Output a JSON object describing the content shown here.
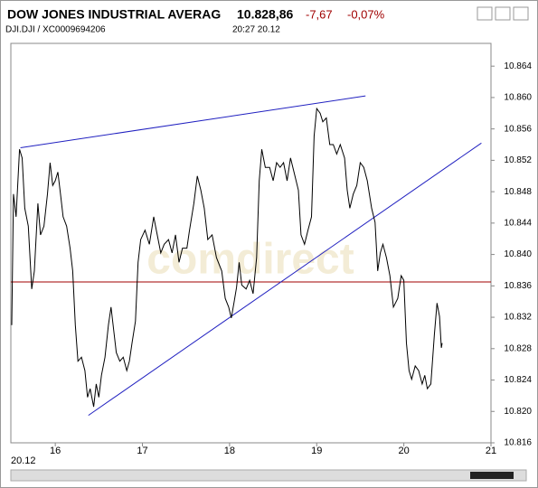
{
  "chart_data": {
    "type": "line",
    "title": "DOW JONES INDUSTRIAL AVERAG",
    "last_price": "10.828,86",
    "change": "-7,67",
    "change_percent": "-0,07%",
    "subtitle": "DJI.DJI  /  XC0009694206",
    "time": "20:27   20.12",
    "date_label": "20.12",
    "watermark": "comdirect",
    "xlim": [
      15.49,
      21.0
    ],
    "xticks": [
      16,
      17,
      18,
      19,
      20,
      21
    ],
    "ylim": [
      10816,
      10866.9
    ],
    "yticks": [
      {
        "value": 10816,
        "label": "10.816"
      },
      {
        "value": 10820,
        "label": "10.820"
      },
      {
        "value": 10824,
        "label": "10.824"
      },
      {
        "value": 10828,
        "label": "10.828"
      },
      {
        "value": 10832,
        "label": "10.832"
      },
      {
        "value": 10836,
        "label": "10.836"
      },
      {
        "value": 10840,
        "label": "10.840"
      },
      {
        "value": 10844,
        "label": "10.844"
      },
      {
        "value": 10848,
        "label": "10.848"
      },
      {
        "value": 10852,
        "label": "10.852"
      },
      {
        "value": 10856,
        "label": "10.856"
      },
      {
        "value": 10860,
        "label": "10.860"
      },
      {
        "value": 10864,
        "label": "10.864"
      }
    ],
    "color": "#000000",
    "x": [
      15.5,
      15.52,
      15.55,
      15.59,
      15.62,
      15.65,
      15.69,
      15.73,
      15.76,
      15.8,
      15.83,
      15.87,
      15.91,
      15.94,
      15.97,
      16.0,
      16.03,
      16.06,
      16.09,
      16.13,
      16.17,
      16.2,
      16.23,
      16.26,
      16.3,
      16.34,
      16.37,
      16.4,
      16.44,
      16.47,
      16.5,
      16.53,
      16.57,
      16.61,
      16.64,
      16.67,
      16.7,
      16.74,
      16.78,
      16.82,
      16.85,
      16.88,
      16.92,
      16.95,
      16.98,
      17.03,
      17.08,
      17.13,
      17.17,
      17.21,
      17.25,
      17.3,
      17.34,
      17.38,
      17.42,
      17.46,
      17.51,
      17.54,
      17.59,
      17.63,
      17.67,
      17.71,
      17.75,
      17.8,
      17.85,
      17.91,
      17.95,
      17.99,
      18.02,
      18.05,
      18.08,
      18.11,
      18.14,
      18.19,
      18.23,
      18.27,
      18.31,
      18.34,
      18.37,
      18.41,
      18.46,
      18.5,
      18.54,
      18.58,
      18.62,
      18.66,
      18.7,
      18.75,
      18.79,
      18.82,
      18.86,
      18.9,
      18.94,
      18.97,
      19.0,
      19.04,
      19.07,
      19.11,
      19.15,
      19.19,
      19.23,
      19.27,
      19.32,
      19.35,
      19.38,
      19.42,
      19.46,
      19.5,
      19.54,
      19.58,
      19.63,
      19.67,
      19.7,
      19.73,
      19.76,
      19.8,
      19.84,
      19.88,
      19.93,
      19.97,
      20.0,
      20.03,
      20.06,
      20.09,
      20.13,
      20.17,
      20.21,
      20.24,
      20.27,
      20.31,
      20.35,
      20.38,
      20.41,
      20.43,
      20.44
    ],
    "values": [
      10831.0,
      10847.7,
      10844.8,
      10853.4,
      10852.3,
      10845.9,
      10843.6,
      10835.6,
      10837.9,
      10846.5,
      10842.5,
      10843.6,
      10847.7,
      10851.7,
      10848.8,
      10849.4,
      10850.5,
      10847.7,
      10844.8,
      10843.6,
      10840.8,
      10837.9,
      10831.0,
      10826.4,
      10826.9,
      10825.2,
      10821.8,
      10822.9,
      10820.6,
      10823.5,
      10821.8,
      10824.6,
      10826.9,
      10831.0,
      10833.3,
      10830.4,
      10827.5,
      10826.4,
      10826.9,
      10825.2,
      10826.4,
      10828.7,
      10831.5,
      10839.0,
      10841.9,
      10843.1,
      10841.3,
      10844.8,
      10842.5,
      10840.2,
      10841.3,
      10841.9,
      10840.2,
      10842.5,
      10839.0,
      10840.8,
      10840.8,
      10843.1,
      10846.5,
      10850.0,
      10848.2,
      10845.9,
      10841.9,
      10842.5,
      10839.6,
      10837.9,
      10834.4,
      10833.3,
      10831.9,
      10833.8,
      10835.8,
      10839.0,
      10836.1,
      10835.6,
      10836.7,
      10835.0,
      10839.6,
      10849.4,
      10853.4,
      10851.1,
      10851.1,
      10849.4,
      10851.7,
      10851.1,
      10851.7,
      10849.4,
      10852.3,
      10850.0,
      10848.2,
      10842.5,
      10841.3,
      10843.1,
      10844.8,
      10855.1,
      10858.6,
      10858.0,
      10856.9,
      10857.4,
      10854.0,
      10854.0,
      10852.8,
      10854.0,
      10852.3,
      10848.2,
      10845.9,
      10847.7,
      10848.8,
      10851.7,
      10851.1,
      10849.4,
      10845.9,
      10844.1,
      10837.9,
      10840.2,
      10841.3,
      10839.6,
      10837.3,
      10833.3,
      10834.4,
      10837.3,
      10836.7,
      10828.7,
      10825.2,
      10824.1,
      10825.8,
      10825.2,
      10823.5,
      10824.6,
      10822.9,
      10823.5,
      10829.8,
      10833.8,
      10832.1,
      10828.1,
      10828.7
    ],
    "reference_line": {
      "value": 10836.5,
      "color": "#a00000"
    },
    "trendlines": [
      {
        "color": "#2020c0",
        "x": [
          15.6,
          19.56
        ],
        "values": [
          10853.6,
          10860.2
        ]
      },
      {
        "color": "#2020c0",
        "x": [
          16.38,
          20.89
        ],
        "values": [
          10819.5,
          10854.2
        ]
      }
    ]
  }
}
